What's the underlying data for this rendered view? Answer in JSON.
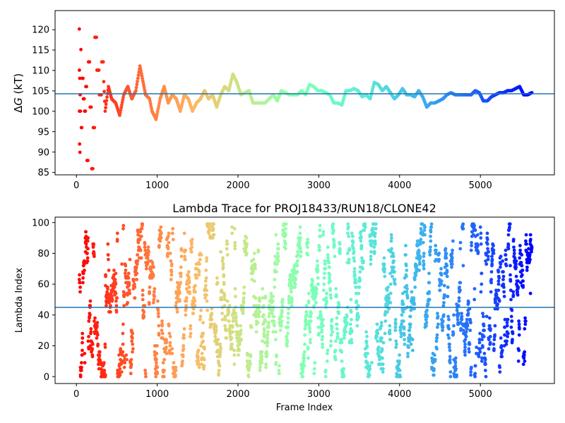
{
  "chart_data": [
    {
      "type": "scatter",
      "title": "",
      "xlabel": "",
      "ylabel": "ΔG (kT)",
      "ylabel_parts": {
        "symbol": "Δ",
        "var": "G",
        "unit": " (kT)"
      },
      "xlim": [
        -300,
        5880
      ],
      "ylim": [
        84.5,
        124.5
      ],
      "xticks": [
        0,
        1000,
        2000,
        3000,
        4000,
        5000
      ],
      "yticks": [
        85,
        90,
        95,
        100,
        105,
        110,
        115,
        120
      ],
      "hline": {
        "y": 104.1,
        "color": "#1f77b4"
      },
      "colormap": "rainbow",
      "grid": false,
      "series": [
        {
          "frames": [
            0,
            1,
            2,
            3,
            5,
            8,
            10,
            14,
            20,
            30,
            40,
            55,
            70,
            85,
            100,
            120,
            140,
            160,
            180,
            200,
            230,
            260,
            290,
            320,
            360,
            400,
            450,
            500,
            550,
            600,
            650,
            700,
            750,
            780,
            820,
            870,
            900,
            950,
            1000,
            1050,
            1100,
            1150,
            1200,
            1250,
            1300,
            1350,
            1400,
            1450,
            1500,
            1550,
            1600,
            1650,
            1700,
            1750,
            1800,
            1850,
            1900,
            1950,
            2000,
            2050,
            2100,
            2150,
            2200,
            2300,
            2400,
            2450,
            2500,
            2600,
            2700,
            2750,
            2800,
            2850,
            2900,
            2950,
            3000,
            3050,
            3100,
            3150,
            3200,
            3250,
            3300,
            3350,
            3400,
            3450,
            3500,
            3550,
            3600,
            3650,
            3700,
            3750,
            3800,
            3850,
            3900,
            3950,
            4000,
            4050,
            4100,
            4150,
            4200,
            4250,
            4300,
            4350,
            4400,
            4450,
            4500,
            4550,
            4600,
            4650,
            4700,
            4750,
            4800,
            4850,
            4900,
            4950,
            5000,
            5050,
            5100,
            5150,
            5200,
            5250,
            5300,
            5350,
            5400,
            5450,
            5500,
            5550,
            5600
          ],
          "values": [
            120,
            110,
            100,
            92,
            108,
            90,
            104,
            100,
            115,
            96,
            108,
            103,
            100,
            106,
            88,
            112,
            101,
            86,
            96,
            118,
            110,
            104,
            112,
            100,
            106,
            103,
            102,
            99,
            104,
            106,
            103,
            105,
            111,
            108,
            104,
            103,
            100,
            98,
            103,
            106,
            102,
            104,
            103,
            100,
            104,
            103,
            100,
            102,
            103,
            105,
            103,
            104,
            101,
            104,
            106,
            105,
            109,
            107,
            104,
            104.5,
            105,
            102,
            102,
            102,
            104,
            102.5,
            105,
            104,
            104,
            105,
            104,
            106.5,
            106,
            105,
            105,
            104.5,
            104,
            102,
            102,
            101.5,
            105,
            105,
            105.5,
            105,
            103.5,
            104,
            103,
            107,
            106.5,
            105,
            106,
            104.5,
            103,
            104,
            105.5,
            104,
            104,
            103.5,
            105,
            103.5,
            101,
            102,
            102,
            102.5,
            103,
            104,
            104.5,
            104,
            104,
            104,
            104,
            104,
            105,
            104.5,
            102.5,
            102.5,
            103.5,
            104,
            104.5,
            104.5,
            105,
            105,
            105.5,
            106,
            104,
            104,
            104.5
          ]
        }
      ]
    },
    {
      "type": "scatter",
      "title": "Lambda Trace for PROJ18433/RUN18/CLONE42",
      "xlabel": "Frame Index",
      "ylabel": "Lambda Index",
      "xlim": [
        -300,
        5880
      ],
      "ylim": [
        -4.5,
        103.5
      ],
      "xticks": [
        0,
        1000,
        2000,
        3000,
        4000,
        5000
      ],
      "yticks": [
        0,
        20,
        40,
        60,
        80,
        100
      ],
      "hline": {
        "y": 45,
        "color": "#1f77b4"
      },
      "colormap": "rainbow",
      "grid": false,
      "series": [
        {
          "frame_range": [
            0,
            5600
          ],
          "value_range": [
            0,
            99
          ],
          "points": 2800
        }
      ]
    }
  ],
  "x_tick_labels": [
    "0",
    "1000",
    "2000",
    "3000",
    "4000",
    "5000"
  ],
  "top_y_tick_labels": [
    "85",
    "90",
    "95",
    "100",
    "105",
    "110",
    "115",
    "120"
  ],
  "bottom_y_tick_labels": [
    "0",
    "20",
    "40",
    "60",
    "80",
    "100"
  ],
  "colors": {
    "axis": "#000000",
    "hline": "#1f77b4"
  }
}
